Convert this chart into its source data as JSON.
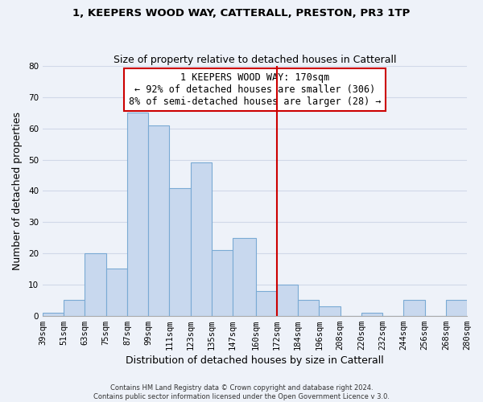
{
  "title": "1, KEEPERS WOOD WAY, CATTERALL, PRESTON, PR3 1TP",
  "subtitle": "Size of property relative to detached houses in Catterall",
  "xlabel": "Distribution of detached houses by size in Catterall",
  "ylabel": "Number of detached properties",
  "bin_edges": [
    39,
    51,
    63,
    75,
    87,
    99,
    111,
    123,
    135,
    147,
    160,
    172,
    184,
    196,
    208,
    220,
    232,
    244,
    256,
    268,
    280
  ],
  "bin_counts": [
    1,
    5,
    20,
    15,
    65,
    61,
    41,
    49,
    21,
    25,
    8,
    10,
    5,
    3,
    0,
    1,
    0,
    5,
    0,
    5
  ],
  "bar_color": "#c8d8ee",
  "bar_edgecolor": "#7aaad4",
  "vline_x": 172,
  "vline_color": "#cc0000",
  "annotation_line1": "1 KEEPERS WOOD WAY: 170sqm",
  "annotation_line2": "← 92% of detached houses are smaller (306)",
  "annotation_line3": "8% of semi-detached houses are larger (28) →",
  "annotation_box_edgecolor": "#cc0000",
  "annotation_box_facecolor": "#ffffff",
  "footer_line1": "Contains HM Land Registry data © Crown copyright and database right 2024.",
  "footer_line2": "Contains public sector information licensed under the Open Government Licence v 3.0.",
  "ylim": [
    0,
    80
  ],
  "tick_labels": [
    "39sqm",
    "51sqm",
    "63sqm",
    "75sqm",
    "87sqm",
    "99sqm",
    "111sqm",
    "123sqm",
    "135sqm",
    "147sqm",
    "160sqm",
    "172sqm",
    "184sqm",
    "196sqm",
    "208sqm",
    "220sqm",
    "232sqm",
    "244sqm",
    "256sqm",
    "268sqm",
    "280sqm"
  ],
  "background_color": "#eef2f9",
  "grid_color": "#d0d8e8",
  "title_fontsize": 9.5,
  "subtitle_fontsize": 9.0,
  "annotation_fontsize": 8.5,
  "axis_label_fontsize": 9.0,
  "tick_fontsize": 7.5,
  "footer_fontsize": 6.0
}
